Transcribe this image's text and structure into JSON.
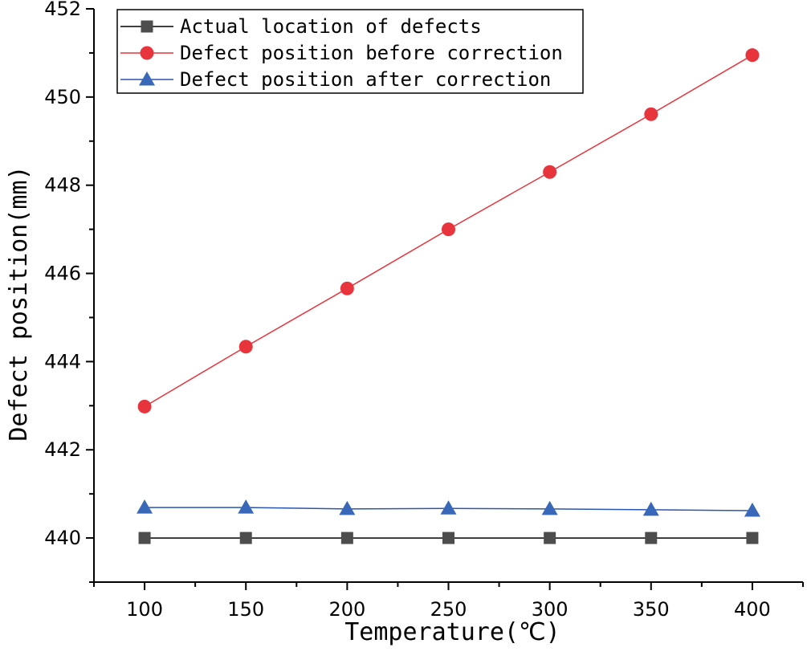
{
  "chart_data": {
    "type": "line",
    "title": "",
    "xlabel": "Temperature(℃)",
    "ylabel": "Defect position(mm)",
    "x": [
      100,
      150,
      200,
      250,
      300,
      350,
      400
    ],
    "xlim": [
      75,
      425
    ],
    "ylim": [
      439,
      452
    ],
    "xticks": [
      100,
      150,
      200,
      250,
      300,
      350,
      400
    ],
    "yticks": [
      440,
      442,
      444,
      446,
      448,
      450,
      452
    ],
    "grid": false,
    "legend_position": "top-left",
    "series": [
      {
        "name": "Actual location of defects",
        "marker": "square",
        "color": "#4d4d4d",
        "line_color": "#000000",
        "values": [
          440.0,
          440.0,
          440.0,
          440.0,
          440.0,
          440.0,
          440.0
        ]
      },
      {
        "name": "Defect position before correction",
        "marker": "circle",
        "color": "#e8343c",
        "line_color": "#e8343c",
        "values": [
          442.98,
          444.34,
          445.66,
          447.0,
          448.3,
          449.61,
          450.95
        ]
      },
      {
        "name": "Defect position after correction",
        "marker": "triangle",
        "color": "#3a68b8",
        "line_color": "#2a55b0",
        "values": [
          440.69,
          440.69,
          440.66,
          440.67,
          440.66,
          440.64,
          440.62
        ]
      }
    ]
  }
}
